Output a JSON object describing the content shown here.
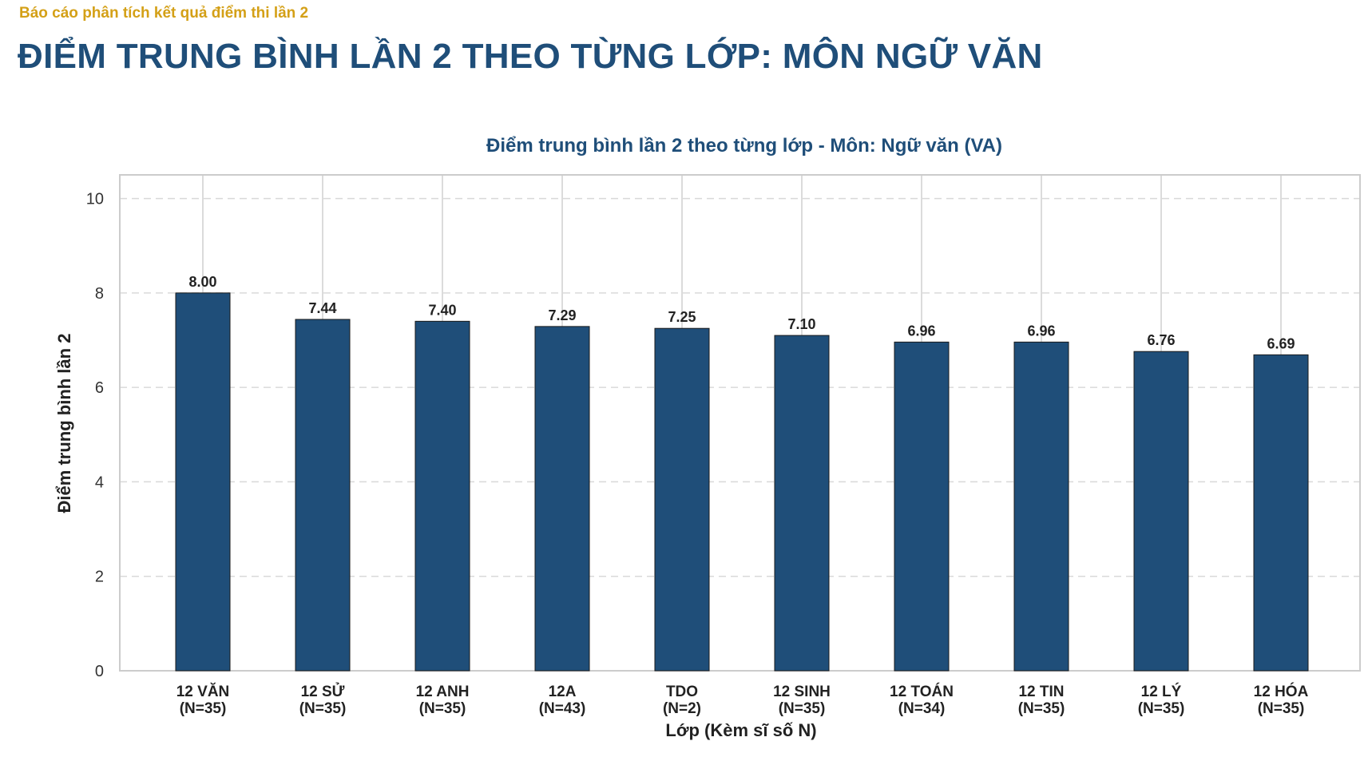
{
  "report": {
    "subtitle": "Báo cáo phân tích kết quả điểm thi lần 2",
    "title": "ĐIỂM TRUNG BÌNH LẦN 2 THEO TỪNG LỚP: MÔN NGỮ VĂN"
  },
  "chart_data": {
    "type": "bar",
    "title": "Điểm trung bình lần 2 theo từng lớp - Môn: Ngữ văn (VA)",
    "xlabel": "Lớp (Kèm sĩ số N)",
    "ylabel": "Điểm trung bình lần 2",
    "categories": [
      "12 VĂN",
      "12 SỬ",
      "12 ANH",
      "12A",
      "TDO",
      "12 SINH",
      "12 TOÁN",
      "12 TIN",
      "12 LÝ",
      "12 HÓA"
    ],
    "counts": [
      "(N=35)",
      "(N=35)",
      "(N=35)",
      "(N=43)",
      "(N=2)",
      "(N=35)",
      "(N=34)",
      "(N=35)",
      "(N=35)",
      "(N=35)"
    ],
    "values": [
      8.0,
      7.44,
      7.4,
      7.29,
      7.25,
      7.1,
      6.96,
      6.96,
      6.76,
      6.69
    ],
    "value_labels": [
      "8.00",
      "7.44",
      "7.40",
      "7.29",
      "7.25",
      "7.10",
      "6.96",
      "6.96",
      "6.76",
      "6.69"
    ],
    "yticks": [
      0,
      2,
      4,
      6,
      8,
      10
    ],
    "ylim": [
      0,
      10.5
    ],
    "grid": true,
    "legend": "none",
    "bar_color": "#1f4e79"
  }
}
